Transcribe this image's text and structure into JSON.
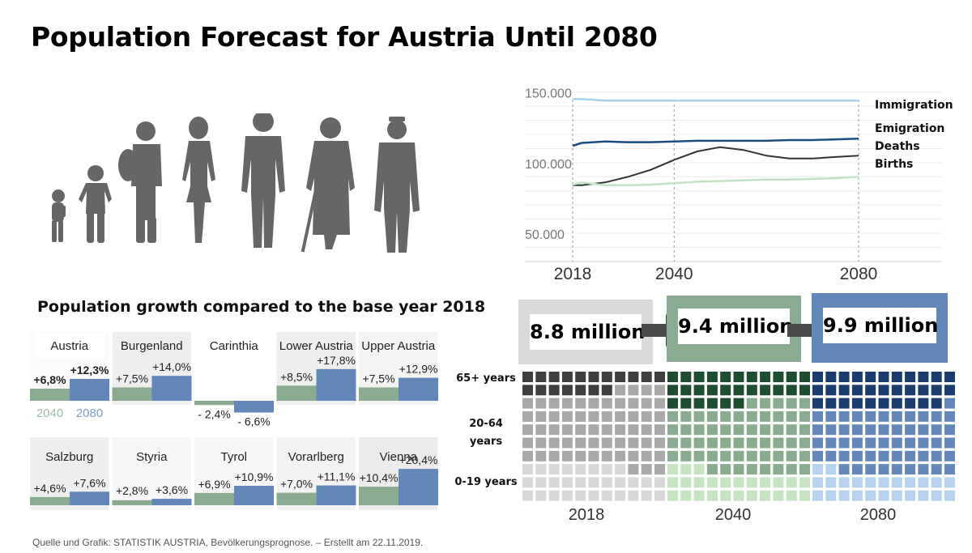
{
  "title": "Population Forecast for Austria Until 2080",
  "growth_title": "Population growth compared to the base year 2018",
  "source": "Quelle und Grafik: STATISTIK AUSTRIA, Bevölkerungsprognose. – Erstellt am 22.11.2019.",
  "colors": {
    "green": "#8aab8f",
    "blue": "#6387b9",
    "grey": "#b5b5b5",
    "dark_blue": "#1f3f72",
    "immigration": "#a8d3e6",
    "emigration": "#1b4a80",
    "deaths": "#333333",
    "births": "#c5e3c4"
  },
  "icons": [
    "baby-silhouette-icon",
    "child-silhouette-icon",
    "teen-backpack-silhouette-icon",
    "woman-silhouette-icon",
    "man-silhouette-icon",
    "elderly-cane-silhouette-icon",
    "elderly-hat-silhouette-icon"
  ],
  "chart_data": [
    {
      "type": "line",
      "x": [
        2018,
        2020,
        2025,
        2030,
        2035,
        2040,
        2045,
        2050,
        2055,
        2060,
        2065,
        2070,
        2075,
        2080
      ],
      "xticks": [
        "2018",
        "2040",
        "2080"
      ],
      "yticks": [
        "150.000",
        "100.000",
        "50.000"
      ],
      "ylim": [
        30000,
        155000
      ],
      "series": [
        {
          "name": "Immigration",
          "values": [
            145000,
            145000,
            144000,
            144000,
            144000,
            144000,
            144000,
            144000,
            144000,
            144000,
            144000,
            144000,
            144000,
            144000
          ]
        },
        {
          "name": "Emigration",
          "values": [
            112000,
            114000,
            115000,
            114500,
            114500,
            115000,
            115500,
            115500,
            115500,
            115500,
            116000,
            116000,
            116500,
            117000
          ]
        },
        {
          "name": "Deaths",
          "values": [
            84000,
            84000,
            86000,
            90000,
            95000,
            102000,
            108000,
            111000,
            109000,
            105000,
            103000,
            103000,
            104000,
            105000
          ]
        },
        {
          "name": "Births",
          "values": [
            84500,
            86000,
            84000,
            84000,
            84500,
            85500,
            86500,
            87000,
            87500,
            88000,
            88000,
            88500,
            89000,
            90000
          ]
        }
      ]
    },
    {
      "type": "bar",
      "series_labels": [
        "2040",
        "2080"
      ],
      "regions": [
        {
          "name": "Austria",
          "v2040": 6.8,
          "v2080": 12.3,
          "l2040": "+6,8%",
          "l2080": "+12,3%"
        },
        {
          "name": "Burgenland",
          "v2040": 7.5,
          "v2080": 14.0,
          "l2040": "+7,5%",
          "l2080": "+14,0%"
        },
        {
          "name": "Carinthia",
          "v2040": -2.4,
          "v2080": -6.6,
          "l2040": "- 2,4%",
          "l2080": "- 6,6%"
        },
        {
          "name": "Lower Austria",
          "v2040": 8.5,
          "v2080": 17.8,
          "l2040": "+8,5%",
          "l2080": "+17,8%"
        },
        {
          "name": "Upper Austria",
          "v2040": 7.5,
          "v2080": 12.9,
          "l2040": "+7,5%",
          "l2080": "+12,9%"
        },
        {
          "name": "Salzburg",
          "v2040": 4.6,
          "v2080": 7.6,
          "l2040": "+4,6%",
          "l2080": "+7,6%"
        },
        {
          "name": "Styria",
          "v2040": 2.8,
          "v2080": 3.6,
          "l2040": "+2,8%",
          "l2080": "+3,6%"
        },
        {
          "name": "Tyrol",
          "v2040": 6.9,
          "v2080": 10.9,
          "l2040": "+6,9%",
          "l2080": "+10,9%"
        },
        {
          "name": "Vorarlberg",
          "v2040": 7.0,
          "v2080": 11.1,
          "l2040": "+7,0%",
          "l2080": "+11,1%"
        },
        {
          "name": "Vienna",
          "v2040": 10.4,
          "v2080": 20.4,
          "l2040": "+10,4%",
          "l2080": "+20,4%"
        }
      ]
    },
    {
      "type": "table",
      "age_groups": [
        "65+ years",
        "20-64 years",
        "0-19 years"
      ],
      "columns": [
        {
          "year": "2018",
          "total": "8.8 million",
          "old": 16.2,
          "working": 56.3,
          "young": 27.5
        },
        {
          "year": "2040",
          "total": "9.4 million",
          "old": 25.3,
          "working": 52.1,
          "young": 22.6
        },
        {
          "year": "2080",
          "total": "9.9 million",
          "old": 28.7,
          "working": 49.8,
          "young": 21.5
        }
      ]
    }
  ]
}
